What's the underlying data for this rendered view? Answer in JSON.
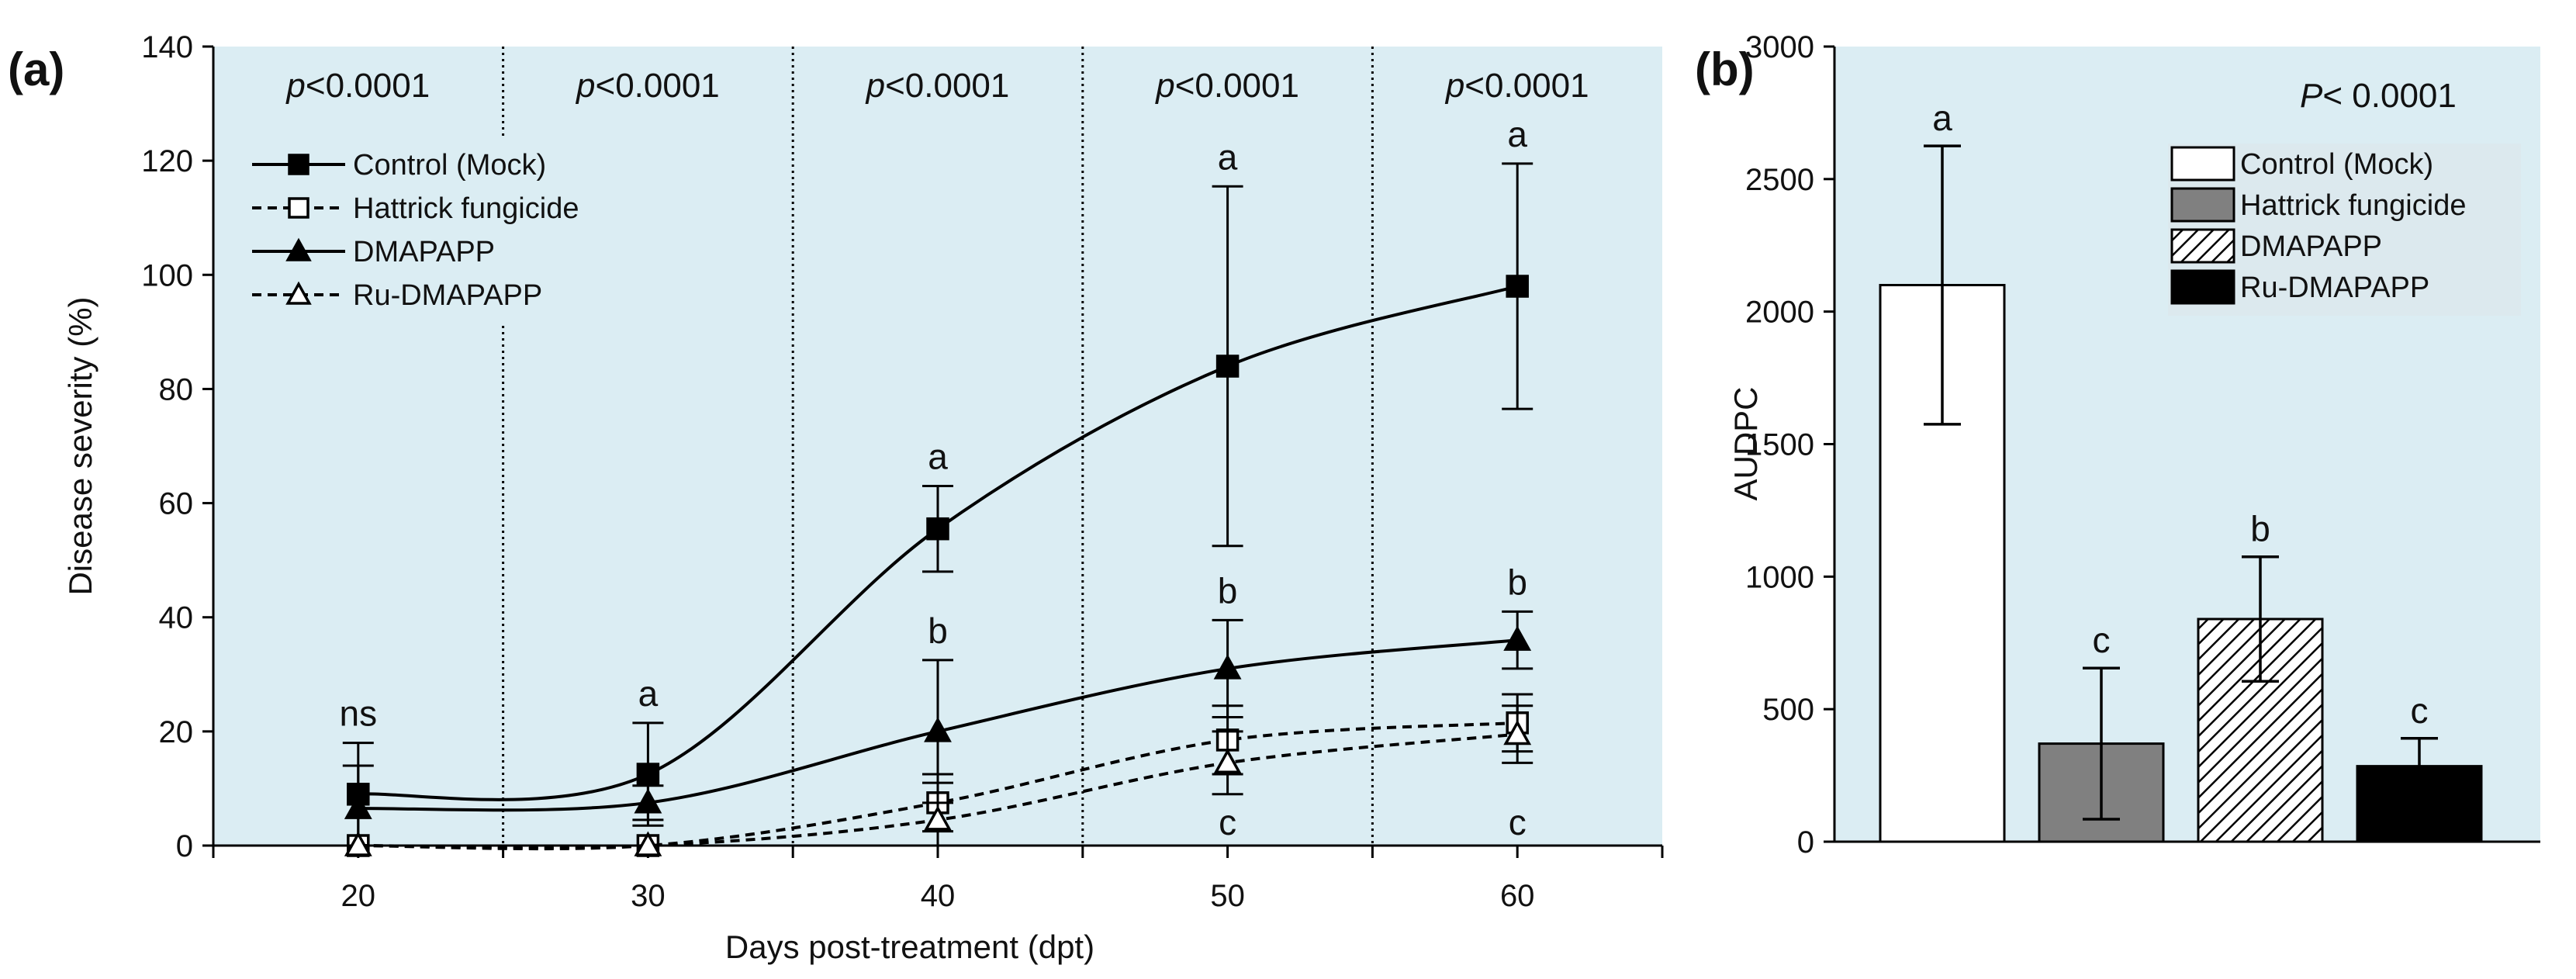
{
  "chart_data": [
    {
      "panel_label": "(a)",
      "type": "line",
      "xlabel": "Days post-treatment  (dpt)",
      "ylabel": "Disease  severity  (%)",
      "xlim": [
        15,
        65
      ],
      "ylim": [
        0,
        140
      ],
      "x_ticks": [
        "20",
        "30",
        "40",
        "50",
        "60"
      ],
      "y_ticks": [
        "0",
        "20",
        "40",
        "60",
        "80",
        "100",
        "120",
        "140"
      ],
      "x": [
        20,
        30,
        40,
        50,
        60
      ],
      "p_values": [
        {
          "prefix": "p",
          "text": "<0.0001"
        },
        {
          "prefix": "p",
          "text": "<0.0001"
        },
        {
          "prefix": "p",
          "text": "<0.0001"
        },
        {
          "prefix": "p",
          "text": "<0.0001"
        },
        {
          "prefix": "p",
          "text": "<0.0001"
        }
      ],
      "period_dividers": [
        25,
        35,
        45,
        55
      ],
      "background_color": "#dbedf3",
      "legend_position": "top-left",
      "series": [
        {
          "name": "Control (Mock)",
          "values": [
            9,
            12.5,
            55.5,
            84,
            98
          ],
          "errors": [
            9,
            9,
            7.5,
            31.5,
            21.5
          ],
          "marker": "square",
          "filled": true,
          "line": "solid"
        },
        {
          "name": "Hattrick fungicide",
          "values": [
            0,
            0,
            7.5,
            18.5,
            21.5
          ],
          "errors": [
            0,
            0,
            5,
            6,
            5
          ],
          "marker": "square",
          "filled": false,
          "line": "dashed"
        },
        {
          "name": "DMAPAPP",
          "values": [
            6.5,
            7.5,
            20,
            31,
            36
          ],
          "errors": [
            7.5,
            3,
            12.5,
            8.5,
            5
          ],
          "marker": "triangle",
          "filled": true,
          "line": "solid"
        },
        {
          "name": "Ru-DMAPAPP",
          "values": [
            0,
            0,
            4.5,
            14.5,
            19.5
          ],
          "errors": [
            0,
            0,
            6.5,
            5.5,
            5
          ],
          "marker": "triangle",
          "filled": false,
          "line": "dashed"
        }
      ],
      "annotations": [
        {
          "x": 20,
          "y": 18,
          "text": "ns"
        },
        {
          "x": 30,
          "y": 21.5,
          "text": "a"
        },
        {
          "x": 40,
          "y": 63,
          "text": "a"
        },
        {
          "x": 40,
          "y": 32.5,
          "text": "b"
        },
        {
          "x": 50,
          "y": 115.5,
          "text": "a"
        },
        {
          "x": 50,
          "y": 39.5,
          "text": "b"
        },
        {
          "x": 50,
          "y": 0,
          "text": "c",
          "below": true
        },
        {
          "x": 60,
          "y": 119.5,
          "text": "a"
        },
        {
          "x": 60,
          "y": 41,
          "text": "b"
        },
        {
          "x": 60,
          "y": 0,
          "text": "c",
          "below": true
        }
      ]
    },
    {
      "panel_label": "(b)",
      "type": "bar",
      "ylabel": "AUDPC",
      "ylim": [
        0,
        3000
      ],
      "y_ticks": [
        "0",
        "500",
        "1000",
        "1500",
        "2000",
        "2500",
        "3000"
      ],
      "p_value": {
        "prefix": "P",
        "text": "< 0.0001"
      },
      "background_color": "#dbedf3",
      "legend_position": "top-right",
      "categories": [
        "Control (Mock)",
        "Hattrick fungicide",
        "DMAPAPP",
        "Ru-DMAPAPP"
      ],
      "values": [
        2100,
        370,
        840,
        285
      ],
      "errors": [
        525,
        285,
        235,
        105
      ],
      "letters": [
        "a",
        "c",
        "b",
        "c"
      ],
      "fills": [
        "#ffffff",
        "#808080",
        "hatch",
        "#000000"
      ]
    }
  ]
}
